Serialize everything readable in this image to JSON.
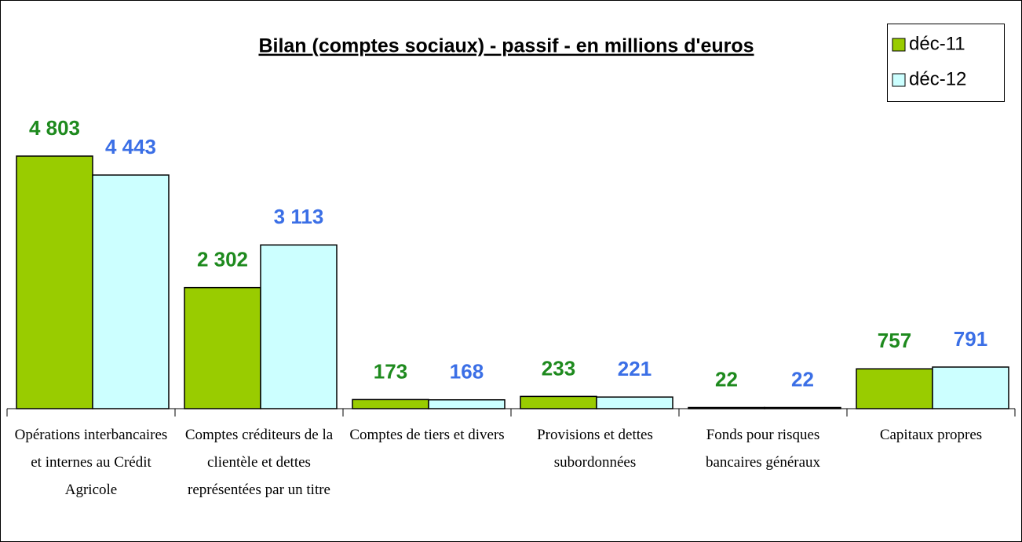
{
  "chart_data": {
    "type": "bar",
    "title": "Bilan (comptes sociaux) - passif - en millions d'euros",
    "categories": [
      "Opérations interbancaires et internes au Crédit Agricole",
      "Comptes créditeurs de la clientèle et dettes représentées par un titre",
      "Comptes de tiers et divers",
      "Provisions et dettes subordonnées",
      "Fonds pour risques bancaires généraux",
      "Capitaux propres"
    ],
    "series": [
      {
        "name": "déc-11",
        "color": "#99cc00",
        "label_color": "#1e8a1e",
        "values": [
          4803,
          2302,
          173,
          233,
          22,
          757
        ],
        "value_labels": [
          "4 803",
          "2 302",
          "173",
          "233",
          "22",
          "757"
        ]
      },
      {
        "name": "déc-12",
        "color": "#ccffff",
        "label_color": "#3b6fe6",
        "values": [
          4443,
          3113,
          168,
          221,
          22,
          791
        ],
        "value_labels": [
          "4 443",
          "3 113",
          "168",
          "221",
          "22",
          "791"
        ]
      }
    ],
    "legend": "upper right"
  }
}
